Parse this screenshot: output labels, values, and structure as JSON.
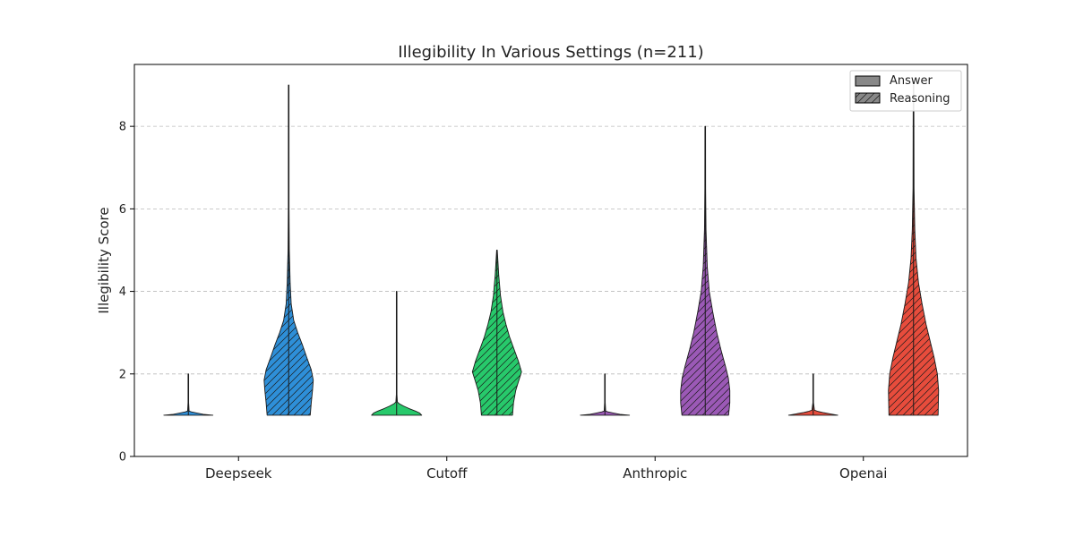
{
  "chart_data": {
    "type": "violin",
    "title": "Illegibility In Various Settings (n=211)",
    "xlabel": "",
    "ylabel": "Illegibility Score",
    "ylim": [
      0,
      9.5
    ],
    "yticks": [
      0,
      2,
      4,
      6,
      8
    ],
    "grid": "y-dashed",
    "legend_placement": "top-right",
    "categories": [
      "Deepseek",
      "Cutoff",
      "Anthropic",
      "Openai"
    ],
    "category_colors": [
      "#2e8fd8",
      "#27c96b",
      "#9b59b6",
      "#e74c3c"
    ],
    "series": [
      {
        "name": "Answer",
        "hatch": false,
        "distributions": [
          {
            "min": 1,
            "max": 2,
            "profile": [
              [
                1,
                0.98
              ],
              [
                1.02,
                0.6
              ],
              [
                1.05,
                0.35
              ],
              [
                1.08,
                0.12
              ],
              [
                1.1,
                0.03
              ],
              [
                1.3,
                0.012
              ],
              [
                2,
                0.012
              ]
            ]
          },
          {
            "min": 1,
            "max": 4,
            "profile": [
              [
                1,
                1.0
              ],
              [
                1.05,
                0.92
              ],
              [
                1.1,
                0.75
              ],
              [
                1.16,
                0.5
              ],
              [
                1.22,
                0.28
              ],
              [
                1.28,
                0.1
              ],
              [
                1.32,
                0.03
              ],
              [
                1.5,
                0.012
              ],
              [
                4,
                0.012
              ]
            ]
          },
          {
            "min": 1,
            "max": 2,
            "profile": [
              [
                1,
                0.98
              ],
              [
                1.02,
                0.6
              ],
              [
                1.05,
                0.35
              ],
              [
                1.08,
                0.12
              ],
              [
                1.1,
                0.03
              ],
              [
                1.3,
                0.012
              ],
              [
                2,
                0.012
              ]
            ]
          },
          {
            "min": 1,
            "max": 2,
            "profile": [
              [
                1,
                0.98
              ],
              [
                1.03,
                0.7
              ],
              [
                1.06,
                0.42
              ],
              [
                1.09,
                0.2
              ],
              [
                1.12,
                0.05
              ],
              [
                1.3,
                0.012
              ],
              [
                2,
                0.012
              ]
            ]
          }
        ]
      },
      {
        "name": "Reasoning",
        "hatch": true,
        "distributions": [
          {
            "min": 1,
            "max": 9,
            "profile": [
              [
                1,
                0.86
              ],
              [
                1.3,
                0.9
              ],
              [
                1.6,
                0.95
              ],
              [
                1.85,
                0.98
              ],
              [
                2.1,
                0.9
              ],
              [
                2.4,
                0.72
              ],
              [
                2.7,
                0.55
              ],
              [
                3.0,
                0.36
              ],
              [
                3.3,
                0.2
              ],
              [
                3.7,
                0.1
              ],
              [
                4.2,
                0.06
              ],
              [
                5.0,
                0.025
              ],
              [
                6.0,
                0.014
              ],
              [
                9,
                0.012
              ]
            ]
          },
          {
            "min": 1,
            "max": 5,
            "profile": [
              [
                1,
                0.62
              ],
              [
                1.3,
                0.66
              ],
              [
                1.6,
                0.75
              ],
              [
                1.8,
                0.85
              ],
              [
                2.05,
                0.98
              ],
              [
                2.3,
                0.86
              ],
              [
                2.6,
                0.68
              ],
              [
                2.9,
                0.5
              ],
              [
                3.2,
                0.36
              ],
              [
                3.5,
                0.24
              ],
              [
                3.9,
                0.14
              ],
              [
                4.4,
                0.07
              ],
              [
                5,
                0.012
              ]
            ]
          },
          {
            "min": 1,
            "max": 8,
            "profile": [
              [
                1,
                0.93
              ],
              [
                1.3,
                0.98
              ],
              [
                1.6,
                0.98
              ],
              [
                1.9,
                0.92
              ],
              [
                2.2,
                0.8
              ],
              [
                2.6,
                0.62
              ],
              [
                3.0,
                0.46
              ],
              [
                3.5,
                0.3
              ],
              [
                4.0,
                0.16
              ],
              [
                4.6,
                0.08
              ],
              [
                5.5,
                0.03
              ],
              [
                6.5,
                0.015
              ],
              [
                8,
                0.012
              ]
            ]
          },
          {
            "min": 1,
            "max": 9,
            "profile": [
              [
                1,
                0.98
              ],
              [
                1.3,
                0.99
              ],
              [
                1.6,
                1.0
              ],
              [
                2.0,
                0.95
              ],
              [
                2.4,
                0.82
              ],
              [
                2.8,
                0.66
              ],
              [
                3.2,
                0.5
              ],
              [
                3.7,
                0.34
              ],
              [
                4.2,
                0.2
              ],
              [
                4.8,
                0.1
              ],
              [
                5.5,
                0.05
              ],
              [
                6.5,
                0.02
              ],
              [
                9,
                0.012
              ]
            ]
          }
        ]
      }
    ]
  }
}
